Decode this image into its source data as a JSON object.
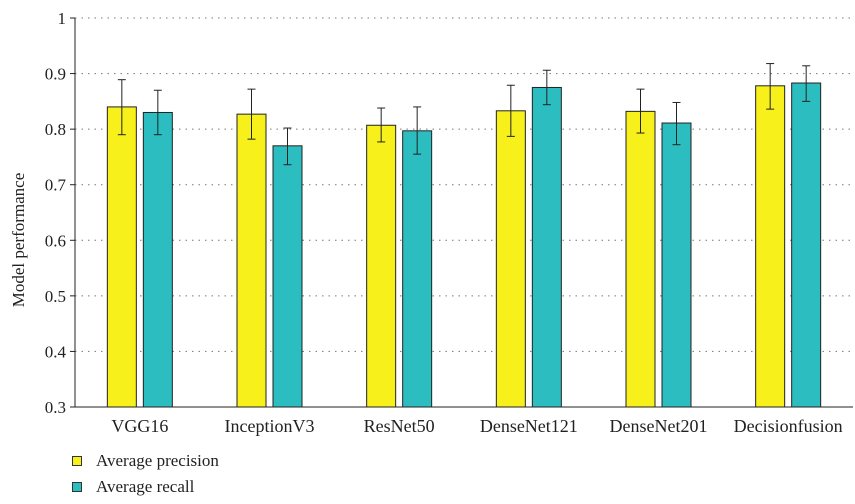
{
  "chart_data": {
    "type": "bar",
    "title": "",
    "xlabel": "",
    "ylabel": "Model performance",
    "ylim": [
      0.3,
      1.0
    ],
    "yticks": [
      "0.3",
      "0.4",
      "0.5",
      "0.6",
      "0.7",
      "0.8",
      "0.9",
      "1"
    ],
    "grid": "horizontal dotted",
    "legend_placement": "bottom-left",
    "categories": [
      "VGG16",
      "InceptionV3",
      "ResNet50",
      "DenseNet121",
      "DenseNet201",
      "Decisionfusion"
    ],
    "series": [
      {
        "name": "Average precision",
        "color": "#f7f01b",
        "values": [
          0.84,
          0.827,
          0.807,
          0.833,
          0.832,
          0.878
        ],
        "error_low": [
          0.79,
          0.782,
          0.777,
          0.787,
          0.793,
          0.836
        ],
        "error_high": [
          0.889,
          0.872,
          0.838,
          0.879,
          0.872,
          0.918
        ]
      },
      {
        "name": "Average recall",
        "color": "#2bbdbf",
        "values": [
          0.83,
          0.77,
          0.797,
          0.875,
          0.811,
          0.883
        ],
        "error_low": [
          0.79,
          0.736,
          0.755,
          0.844,
          0.772,
          0.85
        ],
        "error_high": [
          0.87,
          0.802,
          0.84,
          0.906,
          0.848,
          0.914
        ]
      }
    ]
  }
}
